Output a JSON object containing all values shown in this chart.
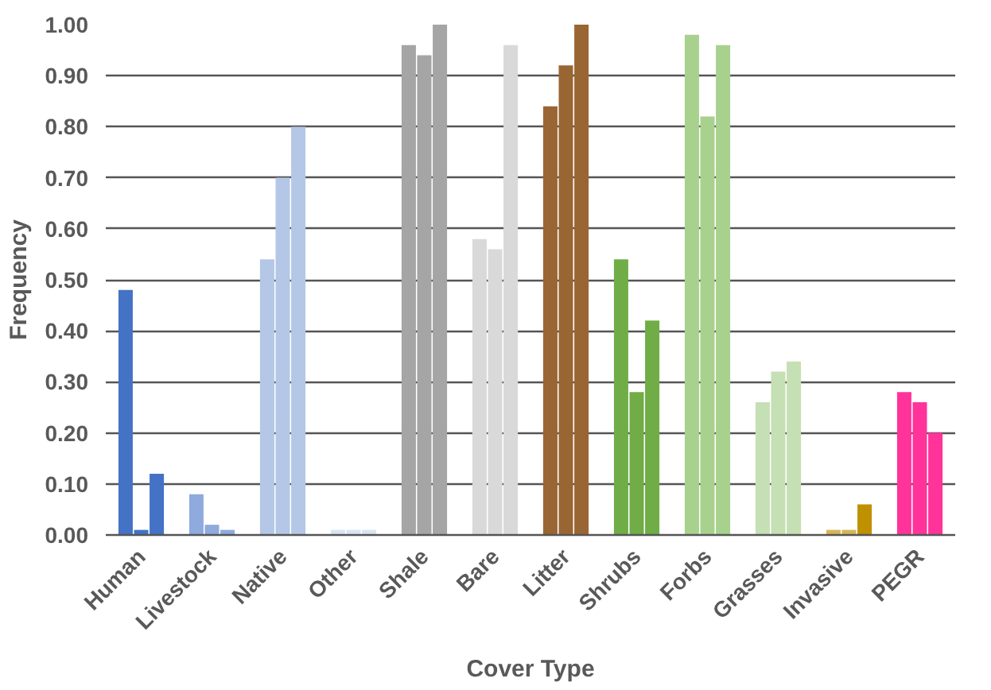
{
  "chart_data": {
    "type": "bar",
    "xlabel": "Cover Type",
    "ylabel": "Frequency",
    "categories": [
      "Human",
      "Livestock",
      "Native",
      "Other",
      "Shale",
      "Bare",
      "Litter",
      "Shrubs",
      "Forbs",
      "Grasses",
      "Invasive",
      "PEGR"
    ],
    "series": [
      {
        "values": [
          0.48,
          0.08,
          0.54,
          0.01,
          0.96,
          0.58,
          0.84,
          0.54,
          0.98,
          0.26,
          0.01,
          0.28
        ],
        "colors": [
          "#4472c4",
          "#8faadc",
          "#b4c7e7",
          "#dae3f3",
          "#a5a5a5",
          "#d9d9d9",
          "#996633",
          "#70ad47",
          "#a9d18e",
          "#c5e0b4",
          "#d6b656",
          "#ff3399"
        ]
      },
      {
        "values": [
          0.01,
          0.02,
          0.7,
          0.01,
          0.94,
          0.56,
          0.92,
          0.28,
          0.82,
          0.32,
          0.01,
          0.26
        ],
        "colors": [
          "#4472c4",
          "#8faadc",
          "#b4c7e7",
          "#dae3f3",
          "#a5a5a5",
          "#d9d9d9",
          "#996633",
          "#70ad47",
          "#a9d18e",
          "#c5e0b4",
          "#d6b656",
          "#ff3399"
        ]
      },
      {
        "values": [
          0.12,
          0.01,
          0.8,
          0.01,
          1.0,
          0.96,
          1.0,
          0.42,
          0.96,
          0.34,
          0.06,
          0.2
        ],
        "colors": [
          "#4472c4",
          "#8faadc",
          "#b4c7e7",
          "#dae3f3",
          "#a5a5a5",
          "#d9d9d9",
          "#996633",
          "#70ad47",
          "#a9d18e",
          "#c5e0b4",
          "#bf9000",
          "#ff3399"
        ]
      }
    ],
    "ylim": [
      0,
      1.0
    ],
    "yticks": [
      {
        "value": 0,
        "label": "0.00"
      },
      {
        "value": 0.1,
        "label": "0.10"
      },
      {
        "value": 0.2,
        "label": "0.20"
      },
      {
        "value": 0.3,
        "label": "0.30"
      },
      {
        "value": 0.4,
        "label": "0.40"
      },
      {
        "value": 0.5,
        "label": "0.50"
      },
      {
        "value": 0.6,
        "label": "0.60"
      },
      {
        "value": 0.7,
        "label": "0.70"
      },
      {
        "value": 0.8,
        "label": "0.80"
      },
      {
        "value": 0.9,
        "label": "0.90"
      },
      {
        "value": 1.0,
        "label": "1.00"
      }
    ],
    "grid": "y"
  }
}
